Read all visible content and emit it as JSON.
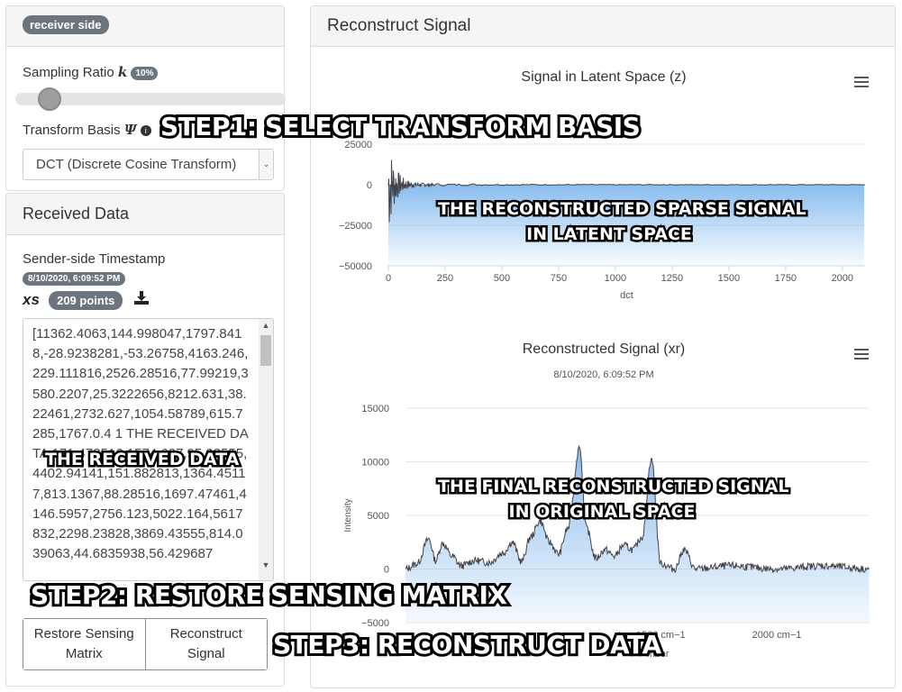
{
  "receiver": {
    "side_label": "receiver side",
    "sampling_label": "Sampling Ratio",
    "sampling_symbol": "k",
    "sampling_value": "10%",
    "sampling_fraction": 0.1,
    "basis_label": "Transform Basis",
    "basis_symbol": "Ψ",
    "basis_value": "DCT (Discrete Cosine Transform)"
  },
  "received": {
    "title": "Received Data",
    "timestamp_label": "Sender-side Timestamp",
    "timestamp_value": "8/10/2020, 6:09:52 PM",
    "xs_label": "xs",
    "points_badge": "209 points",
    "data_text": "[11362.4063,144.998047,1797.8418,-28.9238281,-53.26758,4163.246,229.111816,2526.28516,77.99219,3580.2207,25.3222656,8212.631,38.22461,2732.627,1054.58789,615.7285,1767.0.4 1 THE RECEIVED DATA 171.478516,1574.627,95.93555,4402.94141,151.882813,1364.45117,813.1367,88.28516,1697.47461,4146.5957,2756.123,5022.164,5617832,2298.23828,3869.43555,814.039063,44.6835938,56.429687",
    "restore_button": "Restore Sensing Matrix",
    "reconstruct_button": "Reconstruct Signal"
  },
  "reconstruct": {
    "title": "Reconstruct Signal",
    "latent_chart_title": "Signal in Latent Space (z)",
    "latent_xlabel": "dct",
    "latent_yticks": [
      "25000",
      "0",
      "−25000",
      "−50000"
    ],
    "latent_xticks": [
      "0",
      "250",
      "500",
      "750",
      "1000",
      "1250",
      "1500",
      "1750",
      "2000"
    ],
    "recon_chart_title": "Reconstructed Signal (xr)",
    "recon_chart_subtitle": "8/10/2020, 6:09:52 PM",
    "recon_ylabel": "Intensity",
    "recon_xlabel_visible": "mber",
    "recon_yticks": [
      "15000",
      "10000",
      "5000",
      "0",
      "−5000"
    ],
    "recon_xticks": [
      "1500 cm−1",
      "2000 cm−1"
    ]
  },
  "chart_data": [
    {
      "type": "area",
      "title": "Signal in Latent Space (z)",
      "xlabel": "dct",
      "ylabel": "",
      "xlim": [
        0,
        2100
      ],
      "ylim": [
        -50000,
        25000
      ],
      "series_color": "#434348",
      "fill_color": "#7cb5ec",
      "description_points": [
        [
          0,
          0
        ],
        [
          2,
          25000
        ],
        [
          4,
          -36000
        ],
        [
          8,
          14000
        ],
        [
          12,
          -20000
        ],
        [
          20,
          9000
        ],
        [
          30,
          -10000
        ],
        [
          50,
          5000
        ],
        [
          80,
          -4000
        ],
        [
          120,
          2500
        ],
        [
          200,
          -1500
        ],
        [
          300,
          800
        ],
        [
          500,
          300
        ],
        [
          1000,
          0
        ],
        [
          2100,
          0
        ]
      ]
    },
    {
      "type": "area",
      "title": "Reconstructed Signal (xr)",
      "subtitle": "8/10/2020, 6:09:52 PM",
      "ylabel": "Intensity",
      "ylim": [
        -5000,
        15000
      ],
      "xlim": [
        400,
        2400
      ],
      "series_color": "#434348",
      "fill_color": "#7cb5ec",
      "peaks": [
        [
          400,
          0
        ],
        [
          450,
          500
        ],
        [
          500,
          2800
        ],
        [
          530,
          800
        ],
        [
          560,
          2400
        ],
        [
          600,
          1200
        ],
        [
          640,
          300
        ],
        [
          700,
          800
        ],
        [
          760,
          600
        ],
        [
          820,
          1500
        ],
        [
          860,
          2500
        ],
        [
          900,
          700
        ],
        [
          940,
          3000
        ],
        [
          980,
          4500
        ],
        [
          1020,
          2500
        ],
        [
          1060,
          1400
        ],
        [
          1100,
          3800
        ],
        [
          1150,
          11300
        ],
        [
          1180,
          3800
        ],
        [
          1220,
          1000
        ],
        [
          1260,
          1800
        ],
        [
          1300,
          1200
        ],
        [
          1340,
          2200
        ],
        [
          1380,
          1800
        ],
        [
          1420,
          3000
        ],
        [
          1460,
          10300
        ],
        [
          1500,
          500
        ],
        [
          1560,
          0
        ],
        [
          1600,
          1800
        ],
        [
          1650,
          0
        ],
        [
          1800,
          300
        ],
        [
          2000,
          0
        ],
        [
          2200,
          300
        ],
        [
          2400,
          0
        ]
      ]
    }
  ],
  "overlays": {
    "step1": "STEP1: SELECT TRANSFORM BASIS",
    "step2": "STEP2: RESTORE SENSING MATRIX",
    "step3": "STEP3: RECONSTRUCT DATA",
    "note_received": "THE RECEIVED DATA",
    "note_latent_1": "THE RECONSTRUCTED SPARSE SIGNAL",
    "note_latent_2": "IN LATENT SPACE",
    "note_final_1": "THE FINAL RECONSTRUCTED SIGNAL",
    "note_final_2": "IN ORIGINAL SPACE"
  }
}
